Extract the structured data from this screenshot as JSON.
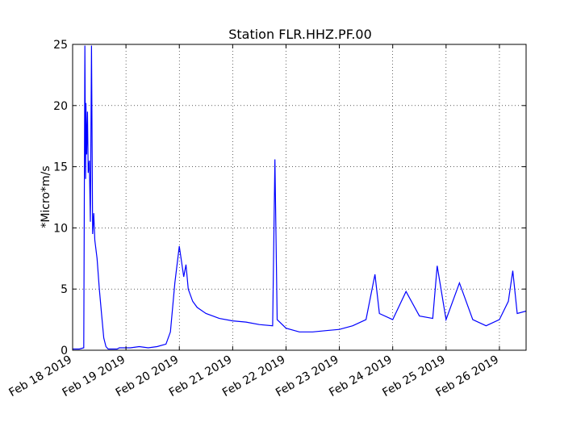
{
  "chart_data": {
    "type": "line",
    "title": "Station FLR.HHZ.PF.00",
    "xlabel": "",
    "ylabel": "*Micro*m/s",
    "ylim": [
      0,
      25
    ],
    "xlim": [
      "2019-02-18T00:00",
      "2019-02-26T12:00"
    ],
    "x_tick_labels": [
      "Feb 18 2019",
      "Feb 19 2019",
      "Feb 20 2019",
      "Feb 21 2019",
      "Feb 22 2019",
      "Feb 23 2019",
      "Feb 24 2019",
      "Feb 25 2019",
      "Feb 26 2019"
    ],
    "y_tick_labels": [
      "0",
      "5",
      "10",
      "15",
      "20",
      "25"
    ],
    "y_ticks": [
      0,
      5,
      10,
      15,
      20,
      25
    ],
    "grid": true,
    "line_color": "#0000ff",
    "series": [
      {
        "x": [
          "2019-02-18T00:00",
          "2019-02-18T03:00",
          "2019-02-18T05:00",
          "2019-02-18T05:30",
          "2019-02-18T05:50",
          "2019-02-18T06:00",
          "2019-02-18T06:20",
          "2019-02-18T06:40",
          "2019-02-18T07:00",
          "2019-02-18T07:30",
          "2019-02-18T08:00",
          "2019-02-18T08:30",
          "2019-02-18T09:00",
          "2019-02-18T09:30",
          "2019-02-18T10:00",
          "2019-02-18T11:00",
          "2019-02-18T12:00",
          "2019-02-18T13:00",
          "2019-02-18T14:00",
          "2019-02-18T15:00",
          "2019-02-18T16:00",
          "2019-02-18T17:00",
          "2019-02-18T18:00",
          "2019-02-18T19:00",
          "2019-02-18T20:00",
          "2019-02-18T21:00",
          "2019-02-18T22:00",
          "2019-02-19T00:00",
          "2019-02-19T02:00",
          "2019-02-19T06:00",
          "2019-02-19T10:00",
          "2019-02-19T14:00",
          "2019-02-19T18:00",
          "2019-02-19T20:00",
          "2019-02-19T22:00",
          "2019-02-20T00:00",
          "2019-02-20T02:00",
          "2019-02-20T03:00",
          "2019-02-20T04:00",
          "2019-02-20T06:00",
          "2019-02-20T08:00",
          "2019-02-20T12:00",
          "2019-02-20T18:00",
          "2019-02-21T00:00",
          "2019-02-21T06:00",
          "2019-02-21T12:00",
          "2019-02-21T18:00",
          "2019-02-21T19:00",
          "2019-02-21T20:00",
          "2019-02-22T00:00",
          "2019-02-22T06:00",
          "2019-02-22T12:00",
          "2019-02-22T18:00",
          "2019-02-23T00:00",
          "2019-02-23T06:00",
          "2019-02-23T12:00",
          "2019-02-23T16:00",
          "2019-02-23T18:00",
          "2019-02-24T00:00",
          "2019-02-24T06:00",
          "2019-02-24T12:00",
          "2019-02-24T18:00",
          "2019-02-24T20:00",
          "2019-02-25T00:00",
          "2019-02-25T06:00",
          "2019-02-25T12:00",
          "2019-02-25T18:00",
          "2019-02-26T00:00",
          "2019-02-26T04:00",
          "2019-02-26T06:00",
          "2019-02-26T08:00",
          "2019-02-26T12:00"
        ],
        "values": [
          0.1,
          0.1,
          0.2,
          24.9,
          14,
          20.2,
          16,
          19.5,
          14.5,
          15.5,
          10.5,
          24.9,
          9.5,
          11.2,
          9,
          7.5,
          5,
          3,
          1,
          0.3,
          0.1,
          0.1,
          0.1,
          0.1,
          0.1,
          0.2,
          0.2,
          0.2,
          0.2,
          0.3,
          0.2,
          0.3,
          0.5,
          1.5,
          5.5,
          8.5,
          6,
          7,
          5,
          4,
          3.5,
          3,
          2.6,
          2.4,
          2.3,
          2.1,
          2,
          15.6,
          2.5,
          1.8,
          1.5,
          1.5,
          1.6,
          1.7,
          2,
          2.5,
          6.2,
          3,
          2.5,
          4.8,
          2.8,
          2.6,
          6.9,
          2.5,
          5.5,
          2.5,
          2,
          2.5,
          4,
          6.5,
          3,
          3.2
        ]
      }
    ]
  }
}
